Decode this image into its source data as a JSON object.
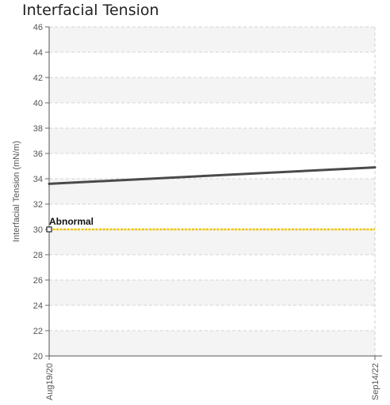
{
  "chart_data": {
    "type": "line",
    "title": "Interfacial Tension",
    "xlabel": "",
    "ylabel": "Interfacial Tension (mN/m)",
    "ylim": [
      20,
      46
    ],
    "yticks": [
      20,
      22,
      24,
      26,
      28,
      30,
      32,
      34,
      36,
      38,
      40,
      42,
      44,
      46
    ],
    "x": [
      "Aug19/20",
      "Sep14/22"
    ],
    "series": [
      {
        "values": [
          33.6,
          34.9
        ],
        "color": "#4a4a4a"
      }
    ],
    "reference_lines": [
      {
        "label": "Abnormal",
        "value": 30,
        "color": "#f2c400"
      }
    ],
    "grid": true,
    "band_colors": [
      "#f4f4f4",
      "#ffffff"
    ]
  }
}
